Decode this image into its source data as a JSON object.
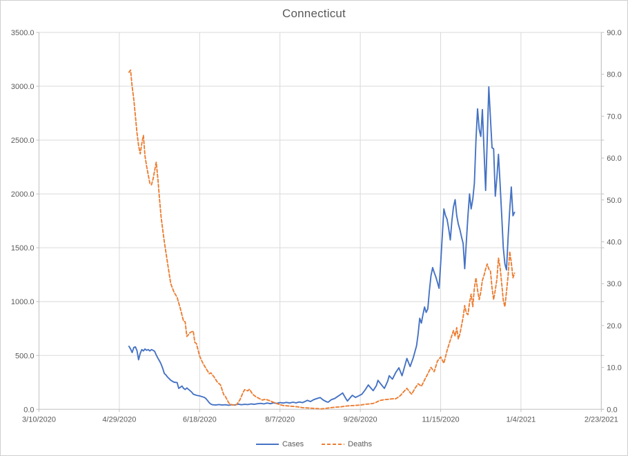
{
  "window": {
    "title": "Connecticut"
  },
  "colors": {
    "cases_blue": "#4472C4",
    "deaths_orange": "#ED7D31",
    "gridline_gray": "#D9D9D9",
    "axis_line_gray": "#BFBFBF",
    "text_gray": "#595959",
    "background": "#FFFFFF"
  },
  "chart_data": {
    "type": "line",
    "title": "Connecticut",
    "grid": true,
    "legend_position": "bottom",
    "x_axis": {
      "days_span": 350,
      "tick_step_days": 50,
      "tick_labels": [
        "3/10/2020",
        "4/29/2020",
        "6/18/2020",
        "8/7/2020",
        "9/26/2020",
        "11/15/2020",
        "1/4/2021",
        "2/23/2021"
      ]
    },
    "y_axis_left": {
      "min": 0,
      "max": 3500,
      "step": 500,
      "tick_labels": [
        "0.0",
        "500.0",
        "1000.0",
        "1500.0",
        "2000.0",
        "2500.0",
        "3000.0",
        "3500.0"
      ]
    },
    "y_axis_right": {
      "min": 0,
      "max": 90,
      "step": 10,
      "tick_labels": [
        "0.0",
        "10.0",
        "20.0",
        "30.0",
        "40.0",
        "50.0",
        "60.0",
        "70.0",
        "80.0",
        "90.0"
      ]
    },
    "series": [
      {
        "name": "Cases",
        "axis": "left",
        "color": "#4472C4",
        "style": "solid",
        "points": [
          [
            56,
            585
          ],
          [
            57,
            560
          ],
          [
            58,
            527
          ],
          [
            59,
            575
          ],
          [
            60,
            580
          ],
          [
            61,
            545
          ],
          [
            62,
            460
          ],
          [
            63,
            520
          ],
          [
            64,
            555
          ],
          [
            65,
            542
          ],
          [
            66,
            560
          ],
          [
            67,
            548
          ],
          [
            68,
            555
          ],
          [
            69,
            542
          ],
          [
            70,
            555
          ],
          [
            71,
            548
          ],
          [
            72,
            538
          ],
          [
            73,
            504
          ],
          [
            74,
            475
          ],
          [
            75,
            450
          ],
          [
            76,
            420
          ],
          [
            77,
            380
          ],
          [
            78,
            333
          ],
          [
            79,
            320
          ],
          [
            80,
            300
          ],
          [
            81,
            285
          ],
          [
            82,
            270
          ],
          [
            84,
            252
          ],
          [
            86,
            248
          ],
          [
            87,
            194
          ],
          [
            88,
            205
          ],
          [
            89,
            216
          ],
          [
            90,
            195
          ],
          [
            91,
            184
          ],
          [
            92,
            198
          ],
          [
            93,
            186
          ],
          [
            95,
            160
          ],
          [
            96,
            141
          ],
          [
            98,
            130
          ],
          [
            100,
            124
          ],
          [
            101,
            120
          ],
          [
            103,
            110
          ],
          [
            104,
            98
          ],
          [
            105,
            80
          ],
          [
            106,
            60
          ],
          [
            107,
            48
          ],
          [
            108,
            42
          ],
          [
            110,
            40
          ],
          [
            112,
            44
          ],
          [
            114,
            40
          ],
          [
            116,
            42
          ],
          [
            118,
            38
          ],
          [
            120,
            42
          ],
          [
            122,
            40
          ],
          [
            124,
            48
          ],
          [
            126,
            42
          ],
          [
            128,
            46
          ],
          [
            130,
            44
          ],
          [
            132,
            50
          ],
          [
            134,
            46
          ],
          [
            136,
            52
          ],
          [
            138,
            55
          ],
          [
            140,
            50
          ],
          [
            142,
            58
          ],
          [
            144,
            52
          ],
          [
            146,
            60
          ],
          [
            148,
            55
          ],
          [
            150,
            62
          ],
          [
            152,
            58
          ],
          [
            154,
            64
          ],
          [
            156,
            58
          ],
          [
            158,
            66
          ],
          [
            160,
            60
          ],
          [
            162,
            68
          ],
          [
            164,
            62
          ],
          [
            166,
            75
          ],
          [
            167,
            83
          ],
          [
            169,
            72
          ],
          [
            171,
            90
          ],
          [
            173,
            100
          ],
          [
            175,
            109
          ],
          [
            177,
            85
          ],
          [
            179,
            70
          ],
          [
            180,
            66
          ],
          [
            182,
            90
          ],
          [
            184,
            100
          ],
          [
            186,
            120
          ],
          [
            188,
            140
          ],
          [
            189,
            152
          ],
          [
            191,
            100
          ],
          [
            192,
            77
          ],
          [
            193,
            95
          ],
          [
            195,
            130
          ],
          [
            197,
            110
          ],
          [
            199,
            125
          ],
          [
            201,
            140
          ],
          [
            203,
            180
          ],
          [
            205,
            226
          ],
          [
            207,
            190
          ],
          [
            208,
            173
          ],
          [
            210,
            220
          ],
          [
            211,
            269
          ],
          [
            213,
            230
          ],
          [
            215,
            194
          ],
          [
            217,
            260
          ],
          [
            218,
            312
          ],
          [
            220,
            280
          ],
          [
            222,
            340
          ],
          [
            224,
            386
          ],
          [
            226,
            312
          ],
          [
            228,
            420
          ],
          [
            229,
            472
          ],
          [
            231,
            397
          ],
          [
            233,
            480
          ],
          [
            235,
            590
          ],
          [
            236,
            700
          ],
          [
            237,
            846
          ],
          [
            238,
            800
          ],
          [
            239,
            880
          ],
          [
            240,
            950
          ],
          [
            241,
            900
          ],
          [
            242,
            932
          ],
          [
            243,
            1100
          ],
          [
            244,
            1240
          ],
          [
            245,
            1316
          ],
          [
            246,
            1270
          ],
          [
            247,
            1231
          ],
          [
            248,
            1180
          ],
          [
            249,
            1124
          ],
          [
            250,
            1350
          ],
          [
            251,
            1600
          ],
          [
            252,
            1861
          ],
          [
            253,
            1800
          ],
          [
            254,
            1765
          ],
          [
            255,
            1680
          ],
          [
            256,
            1573
          ],
          [
            257,
            1750
          ],
          [
            258,
            1880
          ],
          [
            259,
            1947
          ],
          [
            260,
            1800
          ],
          [
            261,
            1720
          ],
          [
            262,
            1669
          ],
          [
            263,
            1600
          ],
          [
            264,
            1541
          ],
          [
            265,
            1306
          ],
          [
            266,
            1550
          ],
          [
            267,
            1800
          ],
          [
            268,
            2000
          ],
          [
            269,
            1861
          ],
          [
            270,
            1950
          ],
          [
            271,
            2100
          ],
          [
            272,
            2500
          ],
          [
            273,
            2790
          ],
          [
            274,
            2600
          ],
          [
            275,
            2534
          ],
          [
            276,
            2784
          ],
          [
            277,
            2400
          ],
          [
            278,
            2032
          ],
          [
            279,
            2500
          ],
          [
            280,
            2994
          ],
          [
            281,
            2700
          ],
          [
            282,
            2428
          ],
          [
            283,
            2420
          ],
          [
            284,
            1979
          ],
          [
            285,
            2150
          ],
          [
            286,
            2368
          ],
          [
            287,
            2100
          ],
          [
            288,
            1800
          ],
          [
            289,
            1500
          ],
          [
            290,
            1350
          ],
          [
            291,
            1295
          ],
          [
            292,
            1600
          ],
          [
            293,
            1850
          ],
          [
            294,
            2064
          ],
          [
            295,
            1797
          ],
          [
            296,
            1830
          ]
        ]
      },
      {
        "name": "Deaths",
        "axis": "right",
        "color": "#ED7D31",
        "style": "dashed",
        "points": [
          [
            56,
            80.5
          ],
          [
            57,
            81
          ],
          [
            58,
            77
          ],
          [
            59,
            74
          ],
          [
            60,
            70
          ],
          [
            61,
            66
          ],
          [
            62,
            63
          ],
          [
            63,
            61
          ],
          [
            64,
            63.5
          ],
          [
            65,
            65.4
          ],
          [
            66,
            60.5
          ],
          [
            67,
            58
          ],
          [
            68,
            56
          ],
          [
            69,
            54
          ],
          [
            70,
            53.6
          ],
          [
            71,
            55
          ],
          [
            72,
            57
          ],
          [
            73,
            59
          ],
          [
            74,
            55
          ],
          [
            75,
            50.3
          ],
          [
            76,
            46
          ],
          [
            77,
            42.9
          ],
          [
            78,
            40
          ],
          [
            80,
            35
          ],
          [
            82,
            30
          ],
          [
            84,
            28
          ],
          [
            86,
            26.7
          ],
          [
            88,
            24
          ],
          [
            90,
            21
          ],
          [
            91,
            20.9
          ],
          [
            92,
            17.4
          ],
          [
            93,
            17.8
          ],
          [
            94,
            18.3
          ],
          [
            96,
            18.7
          ],
          [
            97,
            16
          ],
          [
            98,
            15.7
          ],
          [
            100,
            12.7
          ],
          [
            102,
            11
          ],
          [
            104,
            9.7
          ],
          [
            106,
            8.5
          ],
          [
            107,
            8.7
          ],
          [
            109,
            7.7
          ],
          [
            111,
            6.5
          ],
          [
            113,
            5.8
          ],
          [
            115,
            3.5
          ],
          [
            116,
            3.1
          ],
          [
            118,
            1.6
          ],
          [
            119,
            1.2
          ],
          [
            121,
            1.0
          ],
          [
            123,
            1.1
          ],
          [
            125,
            2.2
          ],
          [
            127,
            4.0
          ],
          [
            128,
            4.7
          ],
          [
            130,
            4.4
          ],
          [
            131,
            4.8
          ],
          [
            133,
            3.6
          ],
          [
            135,
            3.0
          ],
          [
            136,
            2.8
          ],
          [
            139,
            2.2
          ],
          [
            141,
            2.4
          ],
          [
            144,
            2.0
          ],
          [
            147,
            1.5
          ],
          [
            150,
            1.1
          ],
          [
            152,
            0.9
          ],
          [
            155,
            0.8
          ],
          [
            158,
            0.7
          ],
          [
            161,
            0.6
          ],
          [
            164,
            0.4
          ],
          [
            168,
            0.3
          ],
          [
            172,
            0.2
          ],
          [
            176,
            0.1
          ],
          [
            180,
            0.3
          ],
          [
            184,
            0.5
          ],
          [
            188,
            0.6
          ],
          [
            192,
            0.8
          ],
          [
            196,
            0.9
          ],
          [
            200,
            1.0
          ],
          [
            203,
            1.2
          ],
          [
            206,
            1.3
          ],
          [
            208,
            1.4
          ],
          [
            210,
            1.7
          ],
          [
            212,
            2.1
          ],
          [
            215,
            2.3
          ],
          [
            218,
            2.4
          ],
          [
            220,
            2.5
          ],
          [
            222,
            2.5
          ],
          [
            224,
            3.0
          ],
          [
            225,
            3.3
          ],
          [
            227,
            4.2
          ],
          [
            229,
            5.0
          ],
          [
            231,
            4.0
          ],
          [
            232,
            3.6
          ],
          [
            234,
            5.0
          ],
          [
            236,
            6.1
          ],
          [
            238,
            5.5
          ],
          [
            240,
            7.0
          ],
          [
            242,
            8.5
          ],
          [
            244,
            10.0
          ],
          [
            246,
            9.0
          ],
          [
            248,
            11.5
          ],
          [
            250,
            12.5
          ],
          [
            252,
            11.0
          ],
          [
            254,
            14.0
          ],
          [
            256,
            16.5
          ],
          [
            258,
            18.8
          ],
          [
            259,
            17.5
          ],
          [
            260,
            19.5
          ],
          [
            261,
            16.8
          ],
          [
            262,
            18.0
          ],
          [
            263,
            20.0
          ],
          [
            264,
            22.0
          ],
          [
            265,
            24.8
          ],
          [
            266,
            23.0
          ],
          [
            267,
            22.6
          ],
          [
            268,
            25.5
          ],
          [
            269,
            27.5
          ],
          [
            270,
            24.5
          ],
          [
            271,
            29.0
          ],
          [
            272,
            31.4
          ],
          [
            273,
            28.5
          ],
          [
            274,
            26.2
          ],
          [
            275,
            28.0
          ],
          [
            276,
            30.8
          ],
          [
            277,
            32.0
          ],
          [
            278,
            33.5
          ],
          [
            279,
            34.7
          ],
          [
            280,
            33.5
          ],
          [
            281,
            33.0
          ],
          [
            282,
            29.0
          ],
          [
            283,
            26.2
          ],
          [
            284,
            28.5
          ],
          [
            285,
            31.0
          ],
          [
            286,
            36.1
          ],
          [
            287,
            34.0
          ],
          [
            288,
            30.0
          ],
          [
            289,
            26.0
          ],
          [
            290,
            24.5
          ],
          [
            291,
            28.0
          ],
          [
            292,
            32.0
          ],
          [
            293,
            37.7
          ],
          [
            294,
            35.0
          ],
          [
            295,
            31.4
          ],
          [
            296,
            32.5
          ]
        ]
      }
    ]
  }
}
